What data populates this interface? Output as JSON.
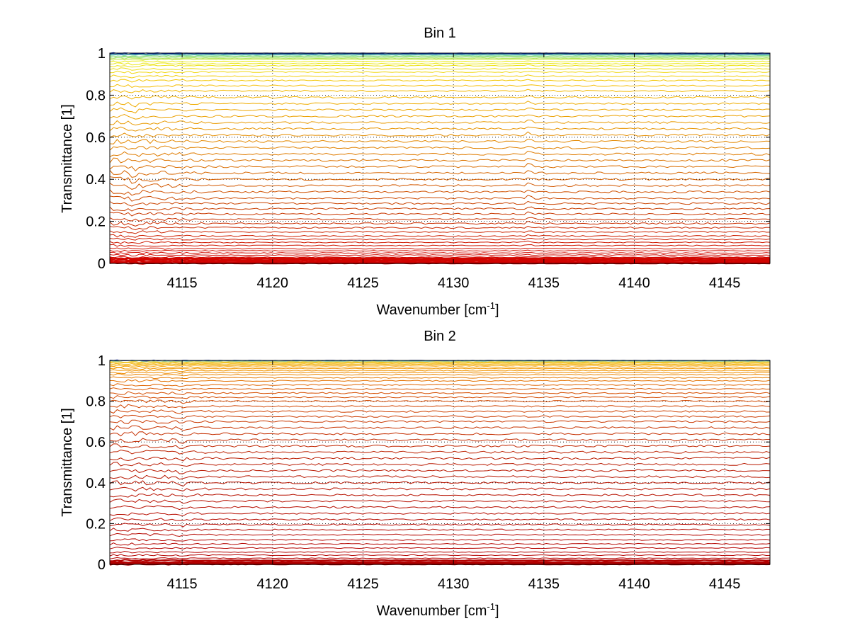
{
  "chart_data": [
    {
      "type": "line",
      "title": "Bin 1",
      "xlabel": "Wavenumber [cm",
      "xlabel_sup": "-1",
      "xlabel_end": "]",
      "ylabel": "Transmittance [1]",
      "xlim": [
        4111,
        4147.5
      ],
      "ylim": [
        0,
        1
      ],
      "xticks": [
        4115,
        4120,
        4125,
        4130,
        4135,
        4140,
        4145
      ],
      "xtick_labels": [
        "4115",
        "4120",
        "4125",
        "4130",
        "4135",
        "4140",
        "4145"
      ],
      "yticks": [
        0,
        0.2,
        0.4,
        0.6,
        0.8,
        1
      ],
      "ytick_labels": [
        "0",
        "0.2",
        "0.4",
        "0.6",
        "0.8",
        "1"
      ],
      "grid": true,
      "series_levels": [
        0.0,
        0.005,
        0.01,
        0.015,
        0.02,
        0.025,
        0.03,
        0.04,
        0.05,
        0.06,
        0.07,
        0.085,
        0.1,
        0.115,
        0.13,
        0.15,
        0.17,
        0.19,
        0.21,
        0.235,
        0.26,
        0.285,
        0.31,
        0.34,
        0.37,
        0.4,
        0.43,
        0.46,
        0.49,
        0.52,
        0.55,
        0.58,
        0.61,
        0.64,
        0.67,
        0.7,
        0.73,
        0.76,
        0.79,
        0.82,
        0.845,
        0.87,
        0.89,
        0.91,
        0.925,
        0.94,
        0.95,
        0.96,
        0.97,
        0.975,
        0.98,
        0.985,
        0.99,
        0.993,
        0.996,
        0.998,
        1.0
      ]
    },
    {
      "type": "line",
      "title": "Bin 2",
      "xlabel": "Wavenumber [cm",
      "xlabel_sup": "-1",
      "xlabel_end": "]",
      "ylabel": "Transmittance [1]",
      "xlim": [
        4111,
        4147.5
      ],
      "ylim": [
        0,
        1
      ],
      "xticks": [
        4115,
        4120,
        4125,
        4130,
        4135,
        4140,
        4145
      ],
      "xtick_labels": [
        "4115",
        "4120",
        "4125",
        "4130",
        "4135",
        "4140",
        "4145"
      ],
      "yticks": [
        0,
        0.2,
        0.4,
        0.6,
        0.8,
        1
      ],
      "ytick_labels": [
        "0",
        "0.2",
        "0.4",
        "0.6",
        "0.8",
        "1"
      ],
      "grid": true,
      "series_levels": [
        0.0,
        0.004,
        0.008,
        0.012,
        0.02,
        0.03,
        0.045,
        0.06,
        0.08,
        0.1,
        0.12,
        0.145,
        0.17,
        0.195,
        0.22,
        0.25,
        0.28,
        0.31,
        0.34,
        0.37,
        0.4,
        0.43,
        0.46,
        0.49,
        0.52,
        0.55,
        0.58,
        0.61,
        0.64,
        0.67,
        0.7,
        0.725,
        0.75,
        0.775,
        0.8,
        0.82,
        0.84,
        0.86,
        0.88,
        0.9,
        0.915,
        0.93,
        0.94,
        0.95,
        0.96,
        0.968,
        0.975,
        0.981,
        0.986,
        0.99,
        0.993,
        0.996,
        0.998,
        1.0
      ]
    }
  ]
}
